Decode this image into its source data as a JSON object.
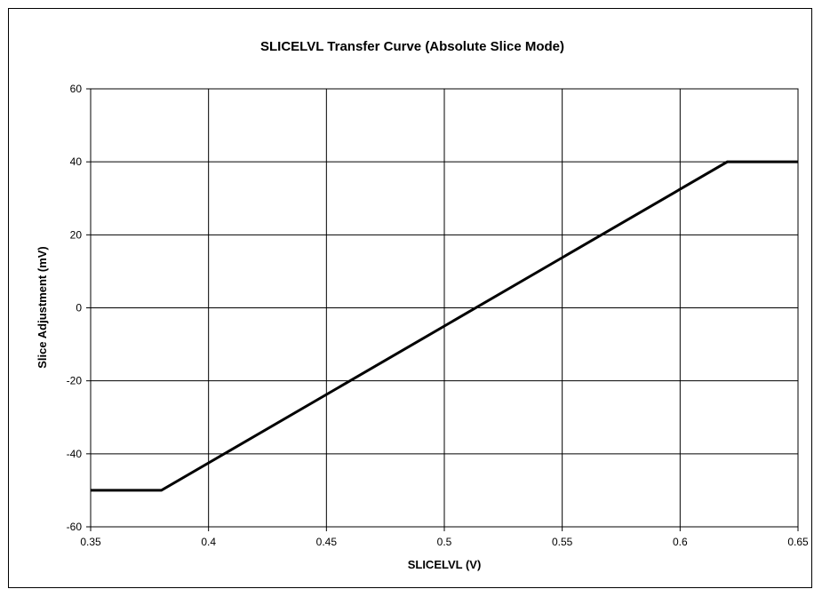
{
  "chart_data": {
    "type": "line",
    "title": "SLICELVL Transfer Curve (Absolute Slice Mode)",
    "xlabel": "SLICELVL (V)",
    "ylabel": "Slice Adjustment (mV)",
    "xlim": [
      0.35,
      0.65
    ],
    "ylim": [
      -60,
      60
    ],
    "x_ticks": [
      0.35,
      0.4,
      0.45,
      0.5,
      0.55,
      0.6,
      0.65
    ],
    "x_tick_labels": [
      "0.35",
      "0.4",
      "0.45",
      "0.5",
      "0.55",
      "0.6",
      "0.65"
    ],
    "y_ticks": [
      -60,
      -40,
      -20,
      0,
      20,
      40,
      60
    ],
    "y_tick_labels": [
      "-60",
      "-40",
      "-20",
      "0",
      "20",
      "40",
      "60"
    ],
    "grid": true,
    "legend": "none",
    "series": [
      {
        "color": "#000000",
        "x": [
          0.35,
          0.38,
          0.62,
          0.65
        ],
        "y": [
          -50,
          -50,
          40,
          40
        ]
      }
    ]
  }
}
